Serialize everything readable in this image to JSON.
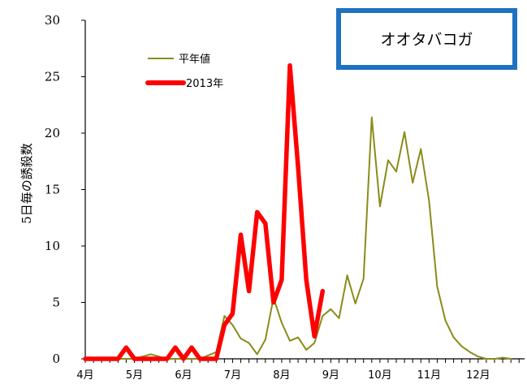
{
  "chart_data": {
    "type": "line",
    "title": "オオタバコガ",
    "ylabel": "5日毎の誘殺数",
    "xlabel": "",
    "ylim": [
      0,
      30
    ],
    "yticks": [
      0,
      5,
      10,
      15,
      20,
      25,
      30
    ],
    "month_labels": [
      "4月",
      "5月",
      "6月",
      "7月",
      "8月",
      "9月",
      "10月",
      "11月",
      "12月"
    ],
    "colors": {
      "平年値": "#8b8b1a",
      "2013年": "#ff0000",
      "title_border": "#1e72c0"
    },
    "legend_position": "upper-left",
    "series": [
      {
        "name": "平年値",
        "values": [
          0,
          0,
          0,
          0,
          0,
          0,
          0,
          0.2,
          0.4,
          0.2,
          0,
          0,
          0,
          0,
          0,
          0.3,
          0.6,
          3.8,
          3.0,
          1.8,
          1.4,
          0.4,
          1.7,
          5.4,
          3.2,
          1.6,
          1.9,
          0.8,
          1.4,
          3.8,
          4.4,
          3.6,
          7.4,
          4.9,
          7.1,
          21.4,
          13.5,
          17.6,
          16.6,
          20.1,
          15.6,
          18.6,
          14.0,
          6.4,
          3.4,
          1.9,
          1.1,
          0.6,
          0.2,
          0,
          0,
          0.1,
          0
        ]
      },
      {
        "name": "2013年",
        "values": [
          0,
          0,
          0,
          0,
          0,
          1,
          0,
          0,
          0,
          0,
          0,
          1,
          0,
          1,
          0,
          0,
          0,
          3,
          4,
          11,
          6,
          13,
          12,
          5,
          7,
          26,
          17,
          7,
          2,
          6
        ]
      }
    ]
  }
}
